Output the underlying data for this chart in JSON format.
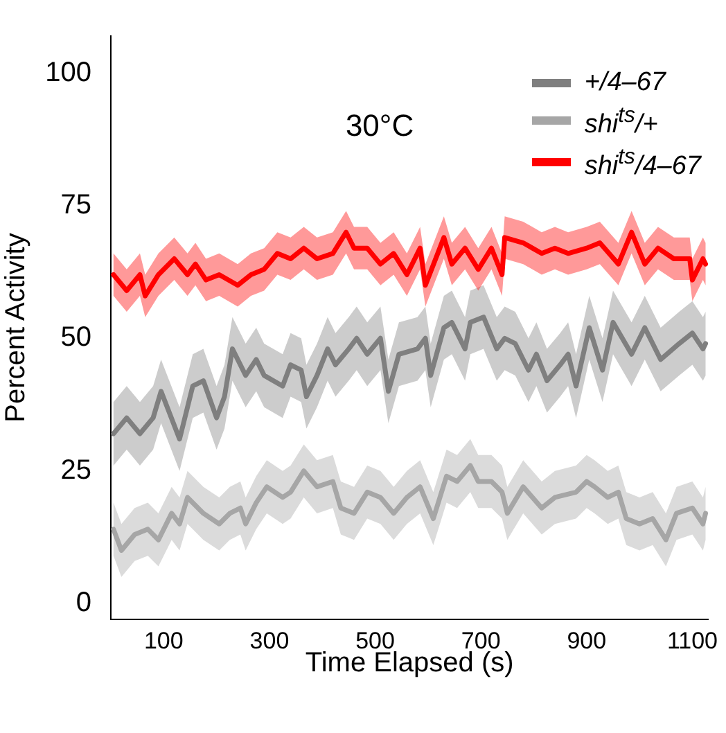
{
  "chart_data": {
    "type": "line",
    "xlabel": "Time Elapsed (s)",
    "ylabel": "Percent Activity",
    "annotations": [
      "30°C"
    ],
    "xlim": [
      0,
      1130
    ],
    "xticks": [
      100,
      300,
      500,
      700,
      900,
      1100
    ],
    "ylim": [
      -3,
      107
    ],
    "yticks": [
      0,
      25,
      50,
      75,
      100
    ],
    "grid": false,
    "legend": "top right",
    "marker": "none",
    "line_style": "solid",
    "series": [
      {
        "name": "+/4–67",
        "color": "#7f7f7f",
        "x": [
          5,
          30,
          55,
          80,
          95,
          130,
          155,
          175,
          200,
          215,
          230,
          255,
          275,
          290,
          325,
          340,
          360,
          370,
          390,
          410,
          425,
          450,
          465,
          485,
          510,
          525,
          545,
          580,
          595,
          605,
          630,
          645,
          670,
          680,
          705,
          730,
          745,
          765,
          790,
          805,
          825,
          850,
          865,
          880,
          905,
          930,
          950,
          985,
          1010,
          1040,
          1075,
          1100,
          1120,
          1125
        ],
        "values": [
          32,
          35,
          32,
          35,
          40,
          31,
          41,
          42,
          35,
          39,
          48,
          43,
          46,
          43,
          41,
          45,
          44,
          39,
          43,
          48,
          45,
          48,
          50,
          47,
          50,
          40,
          47,
          48,
          50,
          43,
          52,
          53,
          48,
          53,
          54,
          48,
          50,
          49,
          44,
          47,
          42,
          45,
          47,
          41,
          52,
          44,
          53,
          47,
          52,
          46,
          49,
          51,
          48,
          49
        ],
        "lower": [
          26,
          29,
          26,
          29,
          34,
          25,
          35,
          36,
          29,
          33,
          42,
          37,
          40,
          37,
          35,
          39,
          38,
          33,
          37,
          42,
          39,
          42,
          44,
          41,
          44,
          34,
          41,
          42,
          44,
          37,
          46,
          47,
          42,
          47,
          48,
          42,
          44,
          43,
          38,
          41,
          36,
          39,
          41,
          35,
          46,
          38,
          47,
          41,
          46,
          40,
          43,
          45,
          42,
          43
        ],
        "upper": [
          38,
          41,
          38,
          41,
          46,
          37,
          47,
          48,
          41,
          45,
          54,
          49,
          52,
          49,
          47,
          51,
          50,
          45,
          49,
          54,
          51,
          54,
          56,
          53,
          56,
          46,
          53,
          54,
          56,
          49,
          58,
          59,
          54,
          59,
          60,
          54,
          56,
          55,
          50,
          53,
          48,
          51,
          53,
          47,
          58,
          50,
          59,
          53,
          58,
          52,
          55,
          57,
          54,
          55
        ]
      },
      {
        "name": "shi$^{ts}$/+",
        "color": "#a6a6a6",
        "x": [
          5,
          20,
          45,
          70,
          90,
          115,
          130,
          145,
          175,
          205,
          225,
          245,
          255,
          275,
          295,
          325,
          340,
          365,
          390,
          420,
          435,
          460,
          485,
          510,
          535,
          560,
          585,
          610,
          635,
          655,
          680,
          695,
          720,
          740,
          750,
          780,
          815,
          840,
          880,
          900,
          915,
          940,
          960,
          975,
          1000,
          1025,
          1050,
          1070,
          1100,
          1120,
          1125
        ],
        "values": [
          14,
          10,
          13,
          14,
          12,
          17,
          15,
          20,
          17,
          15,
          17,
          18,
          15,
          19,
          22,
          20,
          21,
          25,
          22,
          23,
          18,
          17,
          21,
          20,
          17,
          20,
          22,
          16,
          24,
          23,
          26,
          23,
          23,
          21,
          17,
          22,
          18,
          20,
          21,
          23,
          22,
          20,
          21,
          16,
          15,
          16,
          12,
          17,
          18,
          15,
          17
        ],
        "lower": [
          9,
          5,
          8,
          9,
          7,
          12,
          10,
          15,
          12,
          10,
          12,
          13,
          10,
          14,
          17,
          15,
          16,
          20,
          17,
          18,
          13,
          12,
          16,
          15,
          12,
          15,
          17,
          11,
          19,
          18,
          21,
          18,
          18,
          16,
          12,
          17,
          13,
          15,
          16,
          18,
          17,
          15,
          16,
          11,
          10,
          11,
          7,
          12,
          13,
          10,
          12
        ],
        "upper": [
          19,
          15,
          18,
          19,
          17,
          22,
          20,
          25,
          22,
          20,
          22,
          23,
          20,
          24,
          27,
          25,
          26,
          30,
          27,
          28,
          23,
          22,
          26,
          25,
          22,
          25,
          27,
          21,
          29,
          28,
          31,
          28,
          28,
          26,
          22,
          27,
          23,
          25,
          26,
          28,
          27,
          25,
          26,
          21,
          20,
          21,
          17,
          22,
          23,
          20,
          22
        ]
      },
      {
        "name": "shi$^{ts}$/4–67",
        "color": "#ff0000",
        "x": [
          5,
          30,
          55,
          65,
          90,
          120,
          145,
          160,
          180,
          205,
          240,
          265,
          290,
          315,
          340,
          365,
          390,
          420,
          445,
          460,
          485,
          510,
          535,
          560,
          585,
          595,
          630,
          645,
          670,
          695,
          720,
          740,
          745,
          780,
          815,
          840,
          865,
          900,
          925,
          960,
          985,
          1010,
          1035,
          1065,
          1095,
          1100,
          1120,
          1125
        ],
        "values": [
          62,
          59,
          62,
          58,
          62,
          65,
          62,
          64,
          61,
          62,
          60,
          62,
          63,
          66,
          65,
          67,
          65,
          66,
          70,
          67,
          67,
          64,
          66,
          62,
          67,
          60,
          69,
          64,
          67,
          63,
          67,
          62,
          69,
          68,
          66,
          67,
          66,
          67,
          68,
          64,
          70,
          64,
          67,
          65,
          65,
          61,
          65,
          64
        ],
        "lower": [
          58,
          55,
          58,
          54,
          58,
          61,
          58,
          60,
          57,
          58,
          56,
          58,
          59,
          62,
          61,
          63,
          61,
          62,
          66,
          63,
          63,
          60,
          62,
          58,
          63,
          56,
          65,
          60,
          63,
          59,
          63,
          58,
          65,
          64,
          62,
          63,
          62,
          63,
          64,
          60,
          66,
          60,
          63,
          61,
          61,
          57,
          61,
          60
        ],
        "upper": [
          66,
          63,
          66,
          62,
          66,
          69,
          66,
          68,
          65,
          66,
          64,
          66,
          67,
          70,
          69,
          71,
          69,
          70,
          74,
          71,
          71,
          68,
          70,
          66,
          71,
          64,
          73,
          68,
          71,
          67,
          71,
          66,
          73,
          72,
          70,
          71,
          70,
          71,
          72,
          68,
          74,
          68,
          71,
          69,
          69,
          65,
          69,
          68
        ]
      }
    ]
  }
}
